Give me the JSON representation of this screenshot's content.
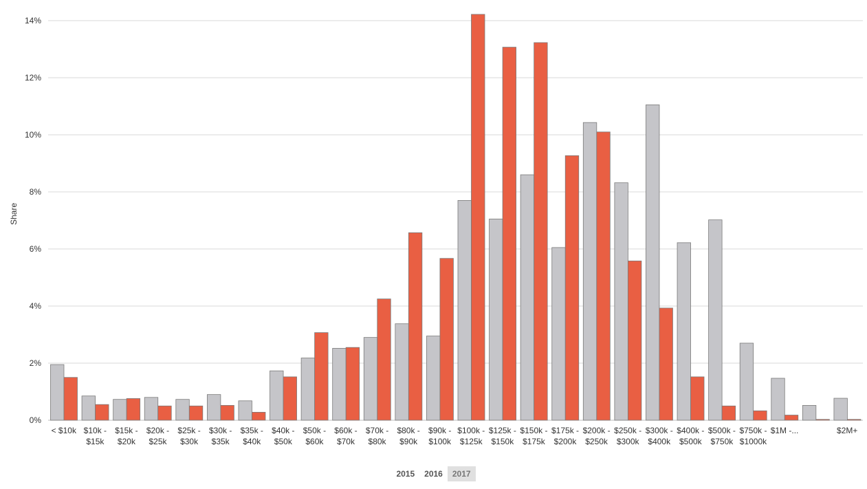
{
  "chart_data": {
    "type": "bar",
    "ylabel": "Share",
    "xlabel": "",
    "ylim": [
      0,
      14
    ],
    "yticks": [
      0,
      2,
      4,
      6,
      8,
      10,
      12,
      14
    ],
    "ytick_labels": [
      "0%",
      "2%",
      "4%",
      "6%",
      "8%",
      "10%",
      "12%",
      "14%"
    ],
    "grid": true,
    "categories": [
      [
        "< $10k"
      ],
      [
        "$10k -",
        "$15k"
      ],
      [
        "$15k -",
        "$20k"
      ],
      [
        "$20k -",
        "$25k"
      ],
      [
        "$25k -",
        "$30k"
      ],
      [
        "$30k -",
        "$35k"
      ],
      [
        "$35k -",
        "$40k"
      ],
      [
        "$40k -",
        "$50k"
      ],
      [
        "$50k -",
        "$60k"
      ],
      [
        "$60k -",
        "$70k"
      ],
      [
        "$70k -",
        "$80k"
      ],
      [
        "$80k -",
        "$90k"
      ],
      [
        "$90k -",
        "$100k"
      ],
      [
        "$100k -",
        "$125k"
      ],
      [
        "$125k -",
        "$150k"
      ],
      [
        "$150k -",
        "$175k"
      ],
      [
        "$175k -",
        "$200k"
      ],
      [
        "$200k -",
        "$250k"
      ],
      [
        "$250k -",
        "$300k"
      ],
      [
        "$300k -",
        "$400k"
      ],
      [
        "$400k -",
        "$500k"
      ],
      [
        "$500k -",
        "$750k"
      ],
      [
        "$750k -",
        "$1000k"
      ],
      [
        "$1M -..."
      ],
      [
        ""
      ],
      [
        "$2M+"
      ]
    ],
    "series": [
      {
        "color": "#c5c5c9",
        "values": [
          1.95,
          0.85,
          0.73,
          0.8,
          0.73,
          0.9,
          0.68,
          1.73,
          2.18,
          2.52,
          2.9,
          3.38,
          2.95,
          7.7,
          7.05,
          8.6,
          6.05,
          10.43,
          8.32,
          11.05,
          6.22,
          7.02,
          2.7,
          1.47,
          0.52,
          0.77
        ]
      },
      {
        "color": "#e95f43",
        "values": [
          1.5,
          0.55,
          0.76,
          0.5,
          0.5,
          0.52,
          0.28,
          1.52,
          3.07,
          2.55,
          4.25,
          6.57,
          5.67,
          14.22,
          13.07,
          13.23,
          9.27,
          10.1,
          5.58,
          3.93,
          1.52,
          0.5,
          0.33,
          0.18,
          0.03,
          0.03
        ]
      }
    ]
  },
  "legend": {
    "years": [
      "2015",
      "2016",
      "2017"
    ],
    "selected": "2017"
  }
}
